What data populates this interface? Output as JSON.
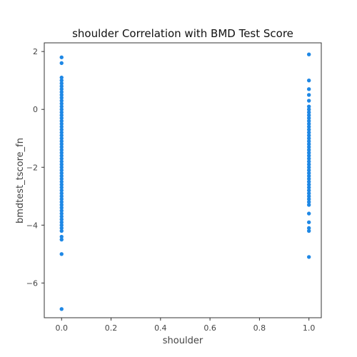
{
  "chart_data": {
    "type": "scatter",
    "title": "shoulder Correlation with BMD Test Score",
    "xlabel": "shoulder",
    "ylabel": "bmdtest_tscore_fn",
    "xlim": [
      -0.07,
      1.05
    ],
    "ylim": [
      -7.2,
      2.3
    ],
    "x_ticks": [
      0.0,
      0.2,
      0.4,
      0.6,
      0.8,
      1.0
    ],
    "x_tick_labels": [
      "0.0",
      "0.2",
      "0.4",
      "0.6",
      "0.8",
      "1.0"
    ],
    "y_ticks": [
      -6,
      -4,
      -2,
      0,
      2
    ],
    "y_tick_labels": [
      "−6",
      "−4",
      "−2",
      "0",
      "2"
    ],
    "grid": false,
    "marker_color": "#1f88e5",
    "series": [
      {
        "values": [
          {
            "x": 0,
            "y": 1.8
          },
          {
            "x": 0,
            "y": 1.6
          },
          {
            "x": 0,
            "y": 1.1
          },
          {
            "x": 0,
            "y": 1.0
          },
          {
            "x": 0,
            "y": 0.9
          },
          {
            "x": 0,
            "y": 0.8
          },
          {
            "x": 0,
            "y": 0.7
          },
          {
            "x": 0,
            "y": 0.6
          },
          {
            "x": 0,
            "y": 0.5
          },
          {
            "x": 0,
            "y": 0.4
          },
          {
            "x": 0,
            "y": 0.3
          },
          {
            "x": 0,
            "y": 0.2
          },
          {
            "x": 0,
            "y": 0.1
          },
          {
            "x": 0,
            "y": 0.0
          },
          {
            "x": 0,
            "y": -0.1
          },
          {
            "x": 0,
            "y": -0.2
          },
          {
            "x": 0,
            "y": -0.3
          },
          {
            "x": 0,
            "y": -0.4
          },
          {
            "x": 0,
            "y": -0.5
          },
          {
            "x": 0,
            "y": -0.6
          },
          {
            "x": 0,
            "y": -0.7
          },
          {
            "x": 0,
            "y": -0.8
          },
          {
            "x": 0,
            "y": -0.9
          },
          {
            "x": 0,
            "y": -1.0
          },
          {
            "x": 0,
            "y": -1.1
          },
          {
            "x": 0,
            "y": -1.2
          },
          {
            "x": 0,
            "y": -1.3
          },
          {
            "x": 0,
            "y": -1.4
          },
          {
            "x": 0,
            "y": -1.5
          },
          {
            "x": 0,
            "y": -1.6
          },
          {
            "x": 0,
            "y": -1.7
          },
          {
            "x": 0,
            "y": -1.8
          },
          {
            "x": 0,
            "y": -1.9
          },
          {
            "x": 0,
            "y": -2.0
          },
          {
            "x": 0,
            "y": -2.1
          },
          {
            "x": 0,
            "y": -2.2
          },
          {
            "x": 0,
            "y": -2.3
          },
          {
            "x": 0,
            "y": -2.4
          },
          {
            "x": 0,
            "y": -2.5
          },
          {
            "x": 0,
            "y": -2.6
          },
          {
            "x": 0,
            "y": -2.7
          },
          {
            "x": 0,
            "y": -2.8
          },
          {
            "x": 0,
            "y": -2.9
          },
          {
            "x": 0,
            "y": -3.0
          },
          {
            "x": 0,
            "y": -3.1
          },
          {
            "x": 0,
            "y": -3.2
          },
          {
            "x": 0,
            "y": -3.3
          },
          {
            "x": 0,
            "y": -3.4
          },
          {
            "x": 0,
            "y": -3.5
          },
          {
            "x": 0,
            "y": -3.6
          },
          {
            "x": 0,
            "y": -3.7
          },
          {
            "x": 0,
            "y": -3.8
          },
          {
            "x": 0,
            "y": -3.9
          },
          {
            "x": 0,
            "y": -4.0
          },
          {
            "x": 0,
            "y": -4.1
          },
          {
            "x": 0,
            "y": -4.2
          },
          {
            "x": 0,
            "y": -4.4
          },
          {
            "x": 0,
            "y": -4.5
          },
          {
            "x": 0,
            "y": -5.0
          },
          {
            "x": 0,
            "y": -6.9
          },
          {
            "x": 1,
            "y": 1.9
          },
          {
            "x": 1,
            "y": 1.0
          },
          {
            "x": 1,
            "y": 0.7
          },
          {
            "x": 1,
            "y": 0.5
          },
          {
            "x": 1,
            "y": 0.3
          },
          {
            "x": 1,
            "y": 0.1
          },
          {
            "x": 1,
            "y": 0.0
          },
          {
            "x": 1,
            "y": -0.1
          },
          {
            "x": 1,
            "y": -0.2
          },
          {
            "x": 1,
            "y": -0.3
          },
          {
            "x": 1,
            "y": -0.4
          },
          {
            "x": 1,
            "y": -0.5
          },
          {
            "x": 1,
            "y": -0.6
          },
          {
            "x": 1,
            "y": -0.7
          },
          {
            "x": 1,
            "y": -0.8
          },
          {
            "x": 1,
            "y": -0.9
          },
          {
            "x": 1,
            "y": -1.0
          },
          {
            "x": 1,
            "y": -1.1
          },
          {
            "x": 1,
            "y": -1.2
          },
          {
            "x": 1,
            "y": -1.3
          },
          {
            "x": 1,
            "y": -1.4
          },
          {
            "x": 1,
            "y": -1.5
          },
          {
            "x": 1,
            "y": -1.6
          },
          {
            "x": 1,
            "y": -1.7
          },
          {
            "x": 1,
            "y": -1.8
          },
          {
            "x": 1,
            "y": -1.9
          },
          {
            "x": 1,
            "y": -2.0
          },
          {
            "x": 1,
            "y": -2.1
          },
          {
            "x": 1,
            "y": -2.2
          },
          {
            "x": 1,
            "y": -2.3
          },
          {
            "x": 1,
            "y": -2.4
          },
          {
            "x": 1,
            "y": -2.5
          },
          {
            "x": 1,
            "y": -2.6
          },
          {
            "x": 1,
            "y": -2.7
          },
          {
            "x": 1,
            "y": -2.8
          },
          {
            "x": 1,
            "y": -2.9
          },
          {
            "x": 1,
            "y": -3.0
          },
          {
            "x": 1,
            "y": -3.1
          },
          {
            "x": 1,
            "y": -3.2
          },
          {
            "x": 1,
            "y": -3.3
          },
          {
            "x": 1,
            "y": -3.6
          },
          {
            "x": 1,
            "y": -3.9
          },
          {
            "x": 1,
            "y": -4.1
          },
          {
            "x": 1,
            "y": -4.2
          },
          {
            "x": 1,
            "y": -5.1
          }
        ]
      }
    ]
  }
}
